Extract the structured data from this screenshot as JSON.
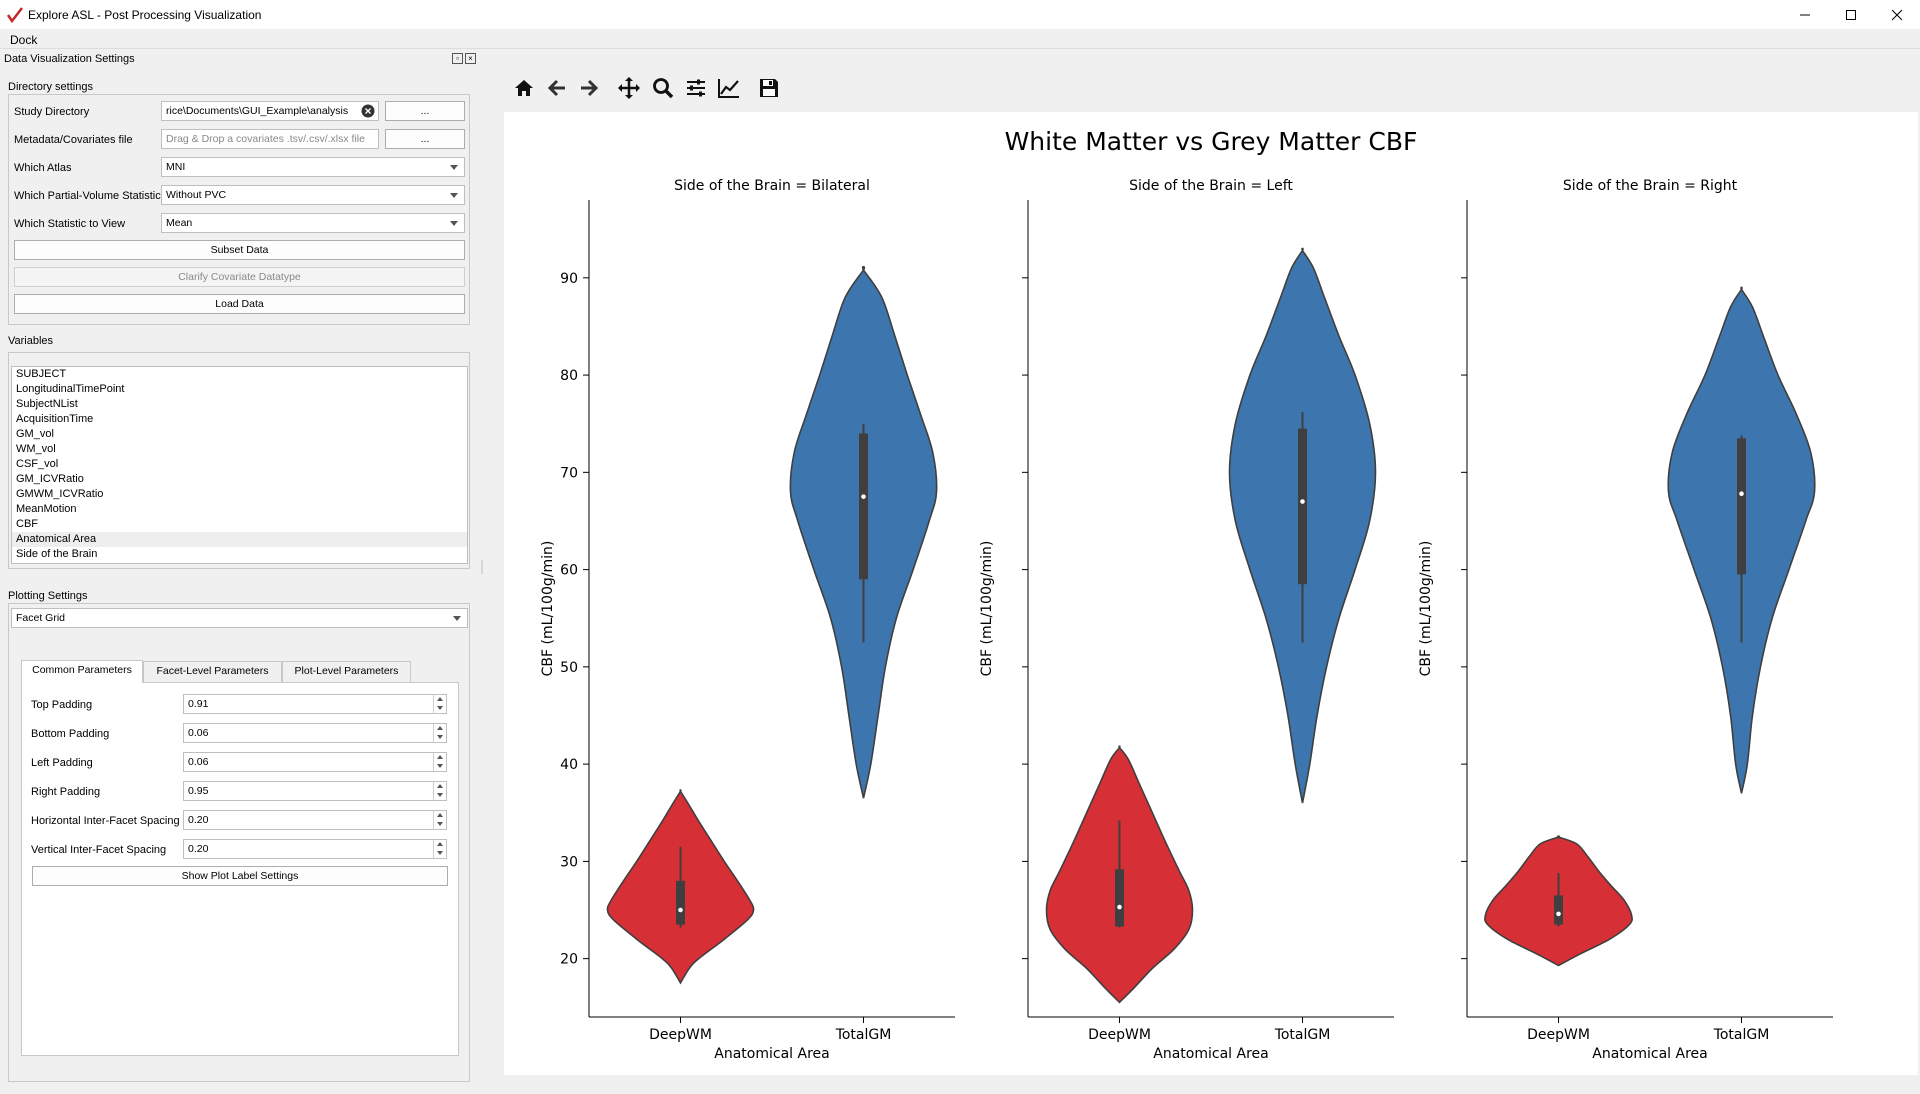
{
  "window": {
    "title": "Explore ASL - Post Processing Visualization",
    "menu": [
      "Dock"
    ]
  },
  "dock": {
    "title": "Data Visualization Settings",
    "directory_settings": {
      "label": "Directory settings",
      "study_directory_label": "Study Directory",
      "study_directory_value": "rice\\Documents\\GUI_Example\\analysis",
      "browse_label": "...",
      "metadata_label": "Metadata/Covariates file",
      "metadata_placeholder": "Drag & Drop a covariates .tsv/.csv/.xlsx file",
      "atlas_label": "Which Atlas",
      "atlas_value": "MNI",
      "pvc_label": "Which Partial-Volume Statistic",
      "pvc_value": "Without PVC",
      "stat_label": "Which Statistic to View",
      "stat_value": "Mean",
      "subset_button": "Subset Data",
      "clarify_button": "Clarify Covariate Datatype",
      "load_button": "Load Data"
    },
    "variables": {
      "label": "Variables",
      "items": [
        "SUBJECT",
        "LongitudinalTimePoint",
        "SubjectNList",
        "AcquisitionTime",
        "GM_vol",
        "WM_vol",
        "CSF_vol",
        "GM_ICVRatio",
        "GMWM_ICVRatio",
        "MeanMotion",
        "CBF",
        "Anatomical Area",
        "Side of the Brain"
      ],
      "highlighted_index": 11
    },
    "plotting": {
      "label": "Plotting Settings",
      "plot_type": "Facet Grid",
      "tabs": [
        "Common Parameters",
        "Facet-Level Parameters",
        "Plot-Level Parameters"
      ],
      "active_tab": 0,
      "params": [
        {
          "label": "Top Padding",
          "value": "0.91"
        },
        {
          "label": "Bottom Padding",
          "value": "0.06"
        },
        {
          "label": "Left Padding",
          "value": "0.06"
        },
        {
          "label": "Right Padding",
          "value": "0.95"
        },
        {
          "label": "Horizontal Inter-Facet Spacing",
          "value": "0.20"
        },
        {
          "label": "Vertical Inter-Facet Spacing",
          "value": "0.20"
        }
      ],
      "show_label_button": "Show Plot Label Settings"
    }
  },
  "toolbar": {
    "icons": [
      "home-icon",
      "back-arrow-icon",
      "forward-arrow-icon",
      "pan-icon",
      "zoom-icon",
      "subplots-config-icon",
      "edit-axis-icon",
      "save-icon"
    ]
  },
  "chart_data": {
    "type": "violin",
    "title": "White Matter vs Grey Matter CBF",
    "ylabel": "CBF (mL/100g/min)",
    "xlabel": "Anatomical Area",
    "ylim": [
      14,
      98
    ],
    "yticks": [
      20,
      30,
      40,
      50,
      60,
      70,
      80,
      90
    ],
    "categories": [
      "DeepWM",
      "TotalGM"
    ],
    "colors": {
      "DeepWM": "#d62f35",
      "TotalGM": "#3d76ae"
    },
    "facets": [
      {
        "title": "Side of the Brain = Bilateral",
        "violins": [
          {
            "category": "DeepWM",
            "min": 17.5,
            "max": 37.2,
            "q1": 23.5,
            "median": 25.0,
            "q3": 28.0,
            "whisker_low": 23.2,
            "whisker_high": 31.5,
            "profile": [
              [
                17.5,
                0
              ],
              [
                19,
                0.12
              ],
              [
                20,
                0.25
              ],
              [
                22,
                0.6
              ],
              [
                24,
                0.92
              ],
              [
                25,
                1.0
              ],
              [
                26,
                0.95
              ],
              [
                28,
                0.78
              ],
              [
                30,
                0.6
              ],
              [
                32,
                0.43
              ],
              [
                34,
                0.26
              ],
              [
                36,
                0.1
              ],
              [
                37.2,
                0
              ]
            ]
          },
          {
            "category": "TotalGM",
            "min": 36.5,
            "max": 90.8,
            "q1": 59.0,
            "median": 67.5,
            "q3": 74.0,
            "whisker_low": 52.5,
            "whisker_high": 75.0,
            "profile": [
              [
                36.5,
                0
              ],
              [
                40,
                0.1
              ],
              [
                45,
                0.2
              ],
              [
                50,
                0.3
              ],
              [
                55,
                0.45
              ],
              [
                60,
                0.68
              ],
              [
                65,
                0.9
              ],
              [
                68,
                1.0
              ],
              [
                72,
                0.95
              ],
              [
                76,
                0.78
              ],
              [
                80,
                0.6
              ],
              [
                84,
                0.43
              ],
              [
                88,
                0.25
              ],
              [
                90.8,
                0
              ]
            ]
          }
        ]
      },
      {
        "title": "Side of the Brain = Left",
        "violins": [
          {
            "category": "DeepWM",
            "min": 15.5,
            "max": 41.7,
            "q1": 23.3,
            "median": 25.3,
            "q3": 29.2,
            "whisker_low": 23.2,
            "whisker_high": 34.2,
            "profile": [
              [
                15.5,
                0
              ],
              [
                17,
                0.2
              ],
              [
                19,
                0.45
              ],
              [
                21,
                0.75
              ],
              [
                23,
                0.95
              ],
              [
                25,
                1.0
              ],
              [
                27,
                0.95
              ],
              [
                29,
                0.82
              ],
              [
                32,
                0.63
              ],
              [
                35,
                0.45
              ],
              [
                38,
                0.27
              ],
              [
                40.5,
                0.12
              ],
              [
                41.7,
                0
              ]
            ]
          },
          {
            "category": "TotalGM",
            "min": 36.0,
            "max": 92.8,
            "q1": 58.5,
            "median": 67.0,
            "q3": 74.5,
            "whisker_low": 52.5,
            "whisker_high": 76.2,
            "profile": [
              [
                36,
                0
              ],
              [
                40,
                0.1
              ],
              [
                45,
                0.2
              ],
              [
                50,
                0.33
              ],
              [
                55,
                0.5
              ],
              [
                60,
                0.72
              ],
              [
                65,
                0.92
              ],
              [
                70,
                1.0
              ],
              [
                75,
                0.92
              ],
              [
                80,
                0.72
              ],
              [
                84,
                0.5
              ],
              [
                88,
                0.3
              ],
              [
                91,
                0.15
              ],
              [
                92.8,
                0
              ]
            ]
          }
        ]
      },
      {
        "title": "Side of the Brain = Right",
        "violins": [
          {
            "category": "DeepWM",
            "min": 19.3,
            "max": 32.5,
            "q1": 23.5,
            "median": 24.6,
            "q3": 26.5,
            "whisker_low": 23.3,
            "whisker_high": 28.8,
            "profile": [
              [
                19.3,
                0
              ],
              [
                20.5,
                0.3
              ],
              [
                22,
                0.7
              ],
              [
                23.5,
                0.97
              ],
              [
                24.5,
                1.0
              ],
              [
                26,
                0.9
              ],
              [
                27.5,
                0.72
              ],
              [
                29,
                0.55
              ],
              [
                30.5,
                0.4
              ],
              [
                31.8,
                0.25
              ],
              [
                32.5,
                0
              ]
            ]
          },
          {
            "category": "TotalGM",
            "min": 37.0,
            "max": 88.8,
            "q1": 59.5,
            "median": 67.8,
            "q3": 73.5,
            "whisker_low": 52.5,
            "whisker_high": 73.8,
            "profile": [
              [
                37,
                0
              ],
              [
                40,
                0.08
              ],
              [
                45,
                0.15
              ],
              [
                50,
                0.26
              ],
              [
                55,
                0.42
              ],
              [
                60,
                0.65
              ],
              [
                65,
                0.88
              ],
              [
                68,
                1.0
              ],
              [
                72,
                0.95
              ],
              [
                76,
                0.75
              ],
              [
                80,
                0.5
              ],
              [
                84,
                0.3
              ],
              [
                87,
                0.15
              ],
              [
                88.8,
                0
              ]
            ]
          }
        ]
      }
    ]
  }
}
